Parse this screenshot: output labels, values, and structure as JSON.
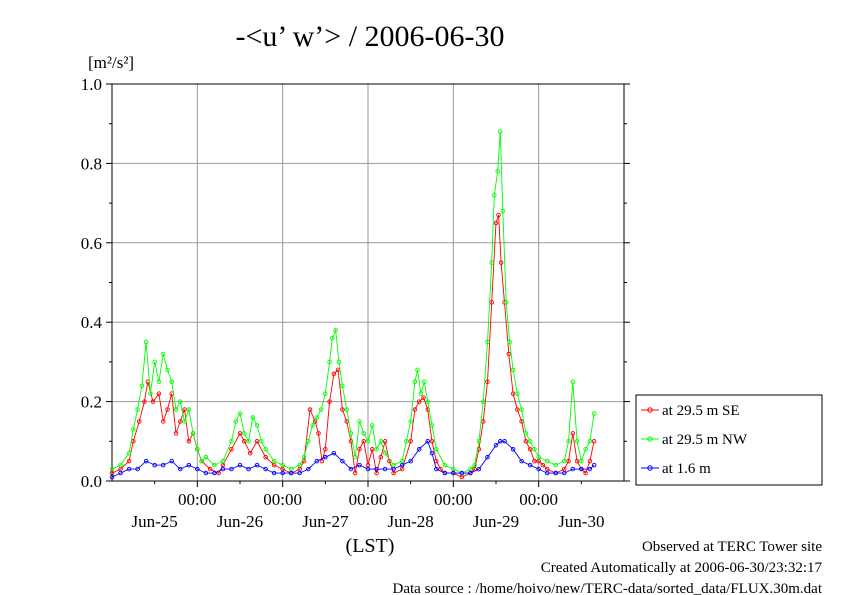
{
  "chart_data": {
    "type": "line",
    "title": "-<u’ w’> / 2006-06-30",
    "ylabel": "[m²/s²]",
    "xlabel": "(LST)",
    "ylim": [
      0,
      1.0
    ],
    "y_ticks": [
      "0.0",
      "0.2",
      "0.4",
      "0.6",
      "0.8",
      "1.0"
    ],
    "xlim": [
      0,
      6.0
    ],
    "x_unit": "days from 2006-06-24 00:00 LST",
    "x_time_ticks": [
      {
        "x": 1,
        "label": "00:00"
      },
      {
        "x": 2,
        "label": "00:00"
      },
      {
        "x": 3,
        "label": "00:00"
      },
      {
        "x": 4,
        "label": "00:00"
      },
      {
        "x": 5,
        "label": "00:00"
      }
    ],
    "x_date_ticks": [
      {
        "x": 0.5,
        "label": "Jun-25"
      },
      {
        "x": 1.5,
        "label": "Jun-26"
      },
      {
        "x": 2.5,
        "label": "Jun-27"
      },
      {
        "x": 3.5,
        "label": "Jun-28"
      },
      {
        "x": 4.5,
        "label": "Jun-29"
      },
      {
        "x": 5.5,
        "label": "Jun-30"
      }
    ],
    "grid": true,
    "legend_position": "right",
    "series": [
      {
        "name": "at 29.5 m SE",
        "color": "#ff0000",
        "points": [
          [
            0.0,
            0.02
          ],
          [
            0.1,
            0.03
          ],
          [
            0.2,
            0.05
          ],
          [
            0.25,
            0.1
          ],
          [
            0.32,
            0.15
          ],
          [
            0.38,
            0.2
          ],
          [
            0.42,
            0.25
          ],
          [
            0.48,
            0.2
          ],
          [
            0.55,
            0.22
          ],
          [
            0.6,
            0.15
          ],
          [
            0.65,
            0.18
          ],
          [
            0.7,
            0.22
          ],
          [
            0.75,
            0.12
          ],
          [
            0.8,
            0.15
          ],
          [
            0.85,
            0.18
          ],
          [
            0.9,
            0.1
          ],
          [
            0.95,
            0.12
          ],
          [
            1.0,
            0.08
          ],
          [
            1.05,
            0.05
          ],
          [
            1.15,
            0.03
          ],
          [
            1.25,
            0.02
          ],
          [
            1.3,
            0.04
          ],
          [
            1.4,
            0.08
          ],
          [
            1.5,
            0.12
          ],
          [
            1.55,
            0.1
          ],
          [
            1.62,
            0.07
          ],
          [
            1.7,
            0.1
          ],
          [
            1.8,
            0.06
          ],
          [
            1.9,
            0.04
          ],
          [
            2.0,
            0.03
          ],
          [
            2.1,
            0.02
          ],
          [
            2.2,
            0.03
          ],
          [
            2.25,
            0.05
          ],
          [
            2.32,
            0.18
          ],
          [
            2.38,
            0.15
          ],
          [
            2.42,
            0.12
          ],
          [
            2.46,
            0.05
          ],
          [
            2.5,
            0.08
          ],
          [
            2.55,
            0.2
          ],
          [
            2.6,
            0.27
          ],
          [
            2.65,
            0.28
          ],
          [
            2.7,
            0.18
          ],
          [
            2.75,
            0.15
          ],
          [
            2.8,
            0.1
          ],
          [
            2.85,
            0.02
          ],
          [
            2.9,
            0.08
          ],
          [
            2.95,
            0.1
          ],
          [
            3.0,
            0.04
          ],
          [
            3.05,
            0.08
          ],
          [
            3.1,
            0.02
          ],
          [
            3.15,
            0.06
          ],
          [
            3.2,
            0.1
          ],
          [
            3.25,
            0.05
          ],
          [
            3.3,
            0.02
          ],
          [
            3.4,
            0.03
          ],
          [
            3.5,
            0.1
          ],
          [
            3.55,
            0.18
          ],
          [
            3.6,
            0.2
          ],
          [
            3.65,
            0.21
          ],
          [
            3.7,
            0.18
          ],
          [
            3.75,
            0.1
          ],
          [
            3.8,
            0.05
          ],
          [
            3.85,
            0.03
          ],
          [
            3.9,
            0.02
          ],
          [
            4.0,
            0.02
          ],
          [
            4.1,
            0.01
          ],
          [
            4.2,
            0.02
          ],
          [
            4.25,
            0.03
          ],
          [
            4.3,
            0.08
          ],
          [
            4.35,
            0.15
          ],
          [
            4.4,
            0.25
          ],
          [
            4.45,
            0.45
          ],
          [
            4.5,
            0.65
          ],
          [
            4.53,
            0.67
          ],
          [
            4.56,
            0.55
          ],
          [
            4.6,
            0.45
          ],
          [
            4.65,
            0.32
          ],
          [
            4.7,
            0.22
          ],
          [
            4.75,
            0.18
          ],
          [
            4.8,
            0.15
          ],
          [
            4.85,
            0.1
          ],
          [
            4.9,
            0.08
          ],
          [
            4.95,
            0.05
          ],
          [
            5.0,
            0.05
          ],
          [
            5.05,
            0.04
          ],
          [
            5.1,
            0.03
          ],
          [
            5.2,
            0.02
          ],
          [
            5.3,
            0.03
          ],
          [
            5.35,
            0.05
          ],
          [
            5.4,
            0.12
          ],
          [
            5.45,
            0.05
          ],
          [
            5.5,
            0.03
          ],
          [
            5.55,
            0.02
          ],
          [
            5.6,
            0.05
          ],
          [
            5.65,
            0.1
          ]
        ]
      },
      {
        "name": "at 29.5 m NW",
        "color": "#00ff00",
        "points": [
          [
            0.0,
            0.03
          ],
          [
            0.1,
            0.04
          ],
          [
            0.2,
            0.07
          ],
          [
            0.25,
            0.13
          ],
          [
            0.3,
            0.18
          ],
          [
            0.35,
            0.24
          ],
          [
            0.4,
            0.35
          ],
          [
            0.45,
            0.22
          ],
          [
            0.5,
            0.3
          ],
          [
            0.55,
            0.25
          ],
          [
            0.6,
            0.32
          ],
          [
            0.65,
            0.28
          ],
          [
            0.7,
            0.25
          ],
          [
            0.75,
            0.18
          ],
          [
            0.8,
            0.2
          ],
          [
            0.85,
            0.15
          ],
          [
            0.9,
            0.18
          ],
          [
            0.95,
            0.12
          ],
          [
            1.0,
            0.08
          ],
          [
            1.05,
            0.05
          ],
          [
            1.1,
            0.06
          ],
          [
            1.2,
            0.04
          ],
          [
            1.3,
            0.05
          ],
          [
            1.4,
            0.1
          ],
          [
            1.45,
            0.15
          ],
          [
            1.5,
            0.17
          ],
          [
            1.55,
            0.12
          ],
          [
            1.6,
            0.1
          ],
          [
            1.65,
            0.16
          ],
          [
            1.7,
            0.14
          ],
          [
            1.75,
            0.1
          ],
          [
            1.8,
            0.08
          ],
          [
            1.9,
            0.05
          ],
          [
            2.0,
            0.04
          ],
          [
            2.1,
            0.03
          ],
          [
            2.2,
            0.04
          ],
          [
            2.25,
            0.06
          ],
          [
            2.3,
            0.1
          ],
          [
            2.35,
            0.14
          ],
          [
            2.4,
            0.16
          ],
          [
            2.45,
            0.18
          ],
          [
            2.5,
            0.22
          ],
          [
            2.55,
            0.3
          ],
          [
            2.58,
            0.36
          ],
          [
            2.62,
            0.38
          ],
          [
            2.66,
            0.3
          ],
          [
            2.7,
            0.24
          ],
          [
            2.75,
            0.18
          ],
          [
            2.8,
            0.12
          ],
          [
            2.85,
            0.06
          ],
          [
            2.9,
            0.15
          ],
          [
            2.95,
            0.12
          ],
          [
            3.0,
            0.1
          ],
          [
            3.05,
            0.14
          ],
          [
            3.1,
            0.08
          ],
          [
            3.15,
            0.1
          ],
          [
            3.2,
            0.07
          ],
          [
            3.3,
            0.04
          ],
          [
            3.4,
            0.05
          ],
          [
            3.45,
            0.1
          ],
          [
            3.5,
            0.15
          ],
          [
            3.55,
            0.25
          ],
          [
            3.58,
            0.28
          ],
          [
            3.62,
            0.22
          ],
          [
            3.66,
            0.25
          ],
          [
            3.7,
            0.2
          ],
          [
            3.75,
            0.14
          ],
          [
            3.8,
            0.08
          ],
          [
            3.9,
            0.04
          ],
          [
            4.0,
            0.03
          ],
          [
            4.1,
            0.02
          ],
          [
            4.2,
            0.03
          ],
          [
            4.25,
            0.04
          ],
          [
            4.3,
            0.1
          ],
          [
            4.35,
            0.2
          ],
          [
            4.4,
            0.35
          ],
          [
            4.45,
            0.55
          ],
          [
            4.48,
            0.72
          ],
          [
            4.52,
            0.78
          ],
          [
            4.55,
            0.88
          ],
          [
            4.58,
            0.68
          ],
          [
            4.62,
            0.45
          ],
          [
            4.66,
            0.35
          ],
          [
            4.7,
            0.28
          ],
          [
            4.75,
            0.22
          ],
          [
            4.8,
            0.18
          ],
          [
            4.85,
            0.12
          ],
          [
            4.9,
            0.1
          ],
          [
            4.95,
            0.08
          ],
          [
            5.0,
            0.06
          ],
          [
            5.1,
            0.05
          ],
          [
            5.2,
            0.04
          ],
          [
            5.3,
            0.05
          ],
          [
            5.35,
            0.1
          ],
          [
            5.4,
            0.25
          ],
          [
            5.45,
            0.1
          ],
          [
            5.5,
            0.05
          ],
          [
            5.55,
            0.08
          ],
          [
            5.6,
            0.1
          ],
          [
            5.65,
            0.17
          ]
        ]
      },
      {
        "name": "at 1.6 m",
        "color": "#0000ff",
        "points": [
          [
            0.0,
            0.01
          ],
          [
            0.1,
            0.02
          ],
          [
            0.2,
            0.03
          ],
          [
            0.3,
            0.03
          ],
          [
            0.4,
            0.05
          ],
          [
            0.5,
            0.04
          ],
          [
            0.6,
            0.04
          ],
          [
            0.7,
            0.05
          ],
          [
            0.8,
            0.03
          ],
          [
            0.9,
            0.04
          ],
          [
            1.0,
            0.03
          ],
          [
            1.1,
            0.02
          ],
          [
            1.2,
            0.02
          ],
          [
            1.3,
            0.03
          ],
          [
            1.4,
            0.03
          ],
          [
            1.5,
            0.04
          ],
          [
            1.6,
            0.03
          ],
          [
            1.7,
            0.04
          ],
          [
            1.8,
            0.03
          ],
          [
            1.9,
            0.02
          ],
          [
            2.0,
            0.02
          ],
          [
            2.1,
            0.02
          ],
          [
            2.2,
            0.02
          ],
          [
            2.3,
            0.03
          ],
          [
            2.4,
            0.05
          ],
          [
            2.5,
            0.06
          ],
          [
            2.6,
            0.07
          ],
          [
            2.7,
            0.05
          ],
          [
            2.8,
            0.03
          ],
          [
            2.9,
            0.04
          ],
          [
            3.0,
            0.03
          ],
          [
            3.1,
            0.03
          ],
          [
            3.2,
            0.03
          ],
          [
            3.3,
            0.03
          ],
          [
            3.4,
            0.04
          ],
          [
            3.5,
            0.05
          ],
          [
            3.6,
            0.08
          ],
          [
            3.7,
            0.1
          ],
          [
            3.75,
            0.07
          ],
          [
            3.8,
            0.03
          ],
          [
            3.9,
            0.02
          ],
          [
            4.0,
            0.02
          ],
          [
            4.1,
            0.02
          ],
          [
            4.2,
            0.02
          ],
          [
            4.3,
            0.03
          ],
          [
            4.4,
            0.06
          ],
          [
            4.5,
            0.09
          ],
          [
            4.55,
            0.1
          ],
          [
            4.6,
            0.1
          ],
          [
            4.7,
            0.08
          ],
          [
            4.8,
            0.05
          ],
          [
            4.9,
            0.04
          ],
          [
            5.0,
            0.03
          ],
          [
            5.1,
            0.02
          ],
          [
            5.2,
            0.02
          ],
          [
            5.3,
            0.02
          ],
          [
            5.4,
            0.03
          ],
          [
            5.5,
            0.03
          ],
          [
            5.6,
            0.03
          ],
          [
            5.65,
            0.04
          ]
        ]
      }
    ]
  },
  "footer": {
    "line1": "Observed at TERC Tower site",
    "line2": "Created Automatically at 2006-06-30/23:32:17",
    "line3": "Data source : /home/hoivo/new/TERC-data/sorted_data/FLUX.30m.dat"
  }
}
